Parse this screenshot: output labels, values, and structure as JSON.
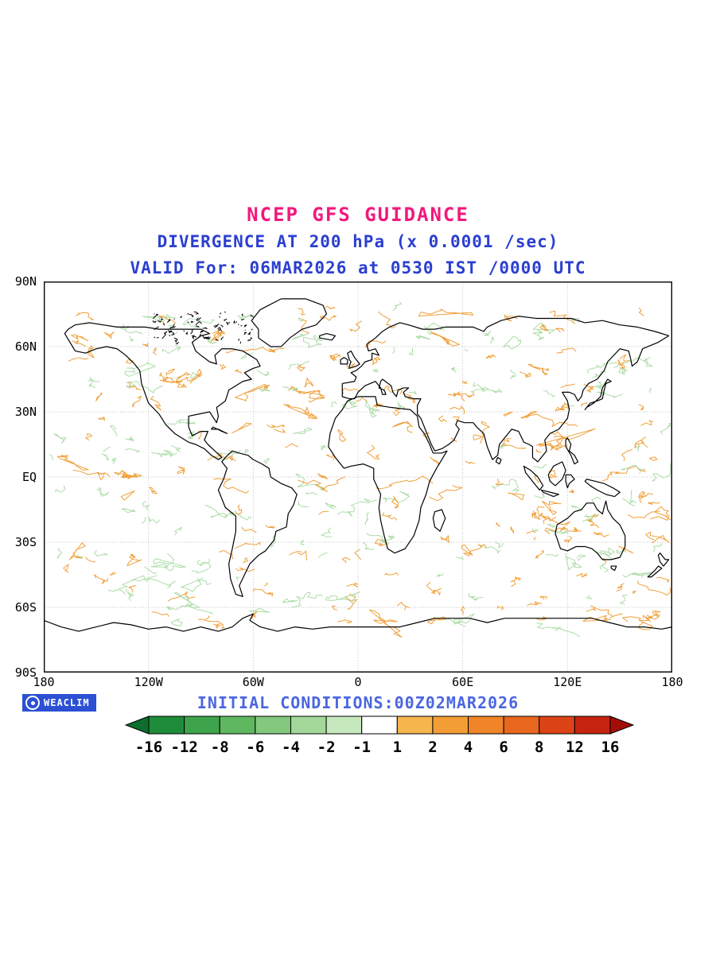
{
  "titles": {
    "main": "NCEP GFS GUIDANCE",
    "sub1": "DIVERGENCE AT 200 hPa (x 0.0001 /sec)",
    "sub2": "VALID For: 06MAR2026 at 0530 IST /0000 UTC",
    "initial": "INITIAL CONDITIONS:00Z02MAR2026"
  },
  "colors": {
    "main_title": "#f2177d",
    "subtitle": "#2b3fd0",
    "initial": "#4b66e0",
    "badge_bg": "#2b50d4",
    "positive_contour": "#f09a2e",
    "negative_contour": "#a9dba4"
  },
  "badge": {
    "label": "WEACLIM"
  },
  "map": {
    "lat_ticks": [
      "90N",
      "60N",
      "30N",
      "EQ",
      "30S",
      "60S",
      "90S"
    ],
    "lon_ticks": [
      "180",
      "120W",
      "60W",
      "0",
      "60E",
      "120E",
      "180"
    ]
  },
  "chart_data": {
    "type": "heatmap",
    "title": "NCEP GFS GUIDANCE",
    "subtitle": "DIVERGENCE AT 200 hPa (x 0.0001 /sec)",
    "variable": "Divergence at 200 hPa",
    "units": "x 0.0001 /sec",
    "valid": "06MAR2026 at 0530 IST /0000 UTC",
    "initial_conditions": "00Z02MAR2026",
    "projection": "equirectangular",
    "xlim": [
      -180,
      180
    ],
    "ylim": [
      -90,
      90
    ],
    "x_ticks": [
      "180",
      "120W",
      "60W",
      "0",
      "60E",
      "120E",
      "180"
    ],
    "y_ticks": [
      "90N",
      "60N",
      "30N",
      "EQ",
      "30S",
      "60S",
      "90S"
    ],
    "grid": true,
    "colorbar": {
      "levels": [
        -16,
        -12,
        -8,
        -6,
        -4,
        -2,
        -1,
        1,
        2,
        4,
        6,
        8,
        12,
        16
      ],
      "labels": [
        "-16",
        "-12",
        "-8",
        "-6",
        "-4",
        "-2",
        "-1",
        "1",
        "2",
        "4",
        "6",
        "8",
        "12",
        "16"
      ],
      "colors": [
        "#0d6e2d",
        "#1f8c3a",
        "#3da44b",
        "#5fb85f",
        "#82c97d",
        "#a3d89a",
        "#c6e8bd",
        "#ffffff",
        "#f7b54e",
        "#f39d36",
        "#ef8428",
        "#e8671e",
        "#dc4316",
        "#c62410",
        "#a30d08"
      ]
    }
  },
  "contours": {
    "seed": 20260306,
    "count": 380,
    "orange": "#f09a2e",
    "green": "#a9dba4"
  }
}
